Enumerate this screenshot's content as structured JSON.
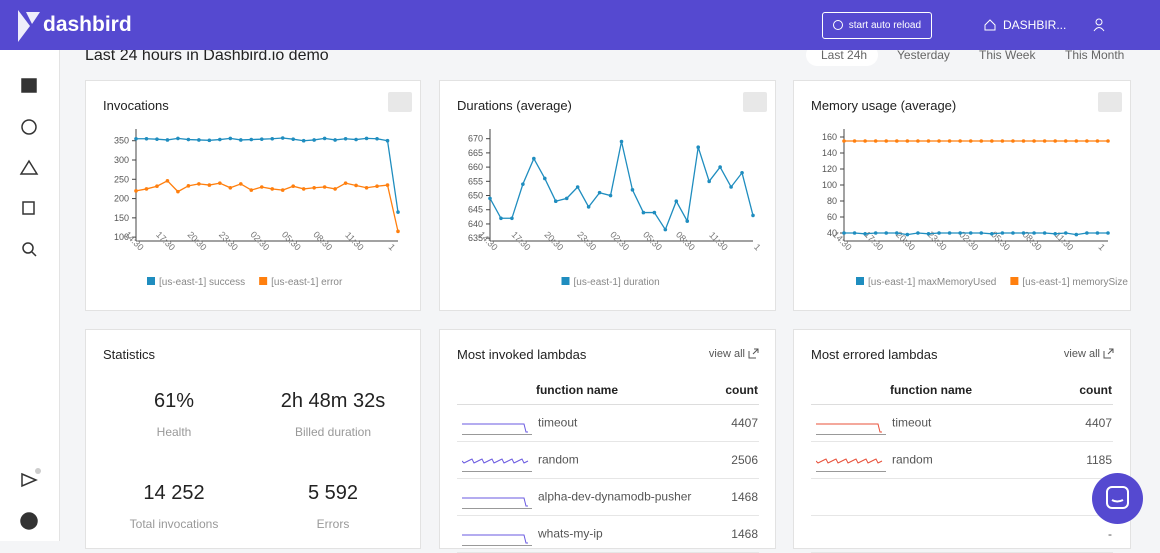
{
  "header": {
    "logo": "dashbird",
    "reload_button": "start auto reload",
    "account": "DASHBIR...",
    "page_title": "Last 24 hours in Dashbird.io demo",
    "tabs": [
      "Last 24h",
      "Yesterday",
      "This Week",
      "This Month"
    ]
  },
  "chart_data": [
    {
      "type": "line",
      "title": "Invocations",
      "categories": [
        "14:30",
        null,
        null,
        "17:30",
        null,
        null,
        "20:30",
        null,
        null,
        "23:30",
        null,
        null,
        "02:30",
        null,
        null,
        "05:30",
        null,
        null,
        "08:30",
        null,
        null,
        "11:30",
        null,
        null,
        "1",
        null
      ],
      "series": [
        {
          "name": "[us-east-1] success",
          "color": "#1f8dbf",
          "values": [
            355,
            355,
            354,
            352,
            356,
            353,
            352,
            351,
            353,
            356,
            352,
            353,
            354,
            355,
            357,
            354,
            350,
            352,
            356,
            352,
            355,
            353,
            356,
            355,
            350,
            165
          ]
        },
        {
          "name": "[us-east-1] error",
          "color": "#ff7f0e",
          "values": [
            220,
            225,
            232,
            246,
            218,
            233,
            238,
            235,
            240,
            228,
            238,
            222,
            230,
            225,
            222,
            232,
            225,
            228,
            230,
            225,
            240,
            234,
            228,
            232,
            235,
            115
          ]
        }
      ],
      "ylim": [
        90,
        370
      ],
      "yticks": [
        100,
        150,
        200,
        250,
        300,
        350
      ]
    },
    {
      "type": "line",
      "title": "Durations (average)",
      "categories": [
        "14:30",
        null,
        null,
        "17:30",
        null,
        null,
        "20:30",
        null,
        null,
        "23:30",
        null,
        null,
        "02:30",
        null,
        null,
        "05:30",
        null,
        null,
        "08:30",
        null,
        null,
        "11:30",
        null,
        null,
        "1"
      ],
      "series": [
        {
          "name": "[us-east-1] duration",
          "color": "#1f8dbf",
          "values": [
            649,
            642,
            642,
            654,
            663,
            656,
            648,
            649,
            653,
            646,
            651,
            650,
            669,
            652,
            644,
            644,
            638,
            648,
            641,
            667,
            655,
            660,
            653,
            658,
            643
          ]
        }
      ],
      "ylim": [
        634,
        672
      ],
      "yticks": [
        635,
        640,
        645,
        650,
        655,
        660,
        665,
        670
      ]
    },
    {
      "type": "line",
      "title": "Memory usage (average)",
      "categories": [
        "14:30",
        null,
        null,
        "17:30",
        null,
        null,
        "20:30",
        null,
        null,
        "23:30",
        null,
        null,
        "02:30",
        null,
        null,
        "05:30",
        null,
        null,
        "08:30",
        null,
        null,
        "11:30",
        null,
        null,
        "1",
        null
      ],
      "series": [
        {
          "name": "[us-east-1] maxMemoryUsed",
          "color": "#1f8dbf",
          "values": [
            40,
            40,
            39,
            40,
            40,
            40,
            38,
            40,
            39,
            40,
            40,
            40,
            40,
            40,
            39,
            40,
            40,
            40,
            40,
            40,
            39,
            40,
            38,
            40,
            40,
            40
          ]
        },
        {
          "name": "[us-east-1] memorySize",
          "color": "#ff7f0e",
          "values": [
            155,
            155,
            155,
            155,
            155,
            155,
            155,
            155,
            155,
            155,
            155,
            155,
            155,
            155,
            155,
            155,
            155,
            155,
            155,
            155,
            155,
            155,
            155,
            155,
            155,
            155
          ]
        }
      ],
      "ylim": [
        30,
        165
      ],
      "yticks": [
        40,
        60,
        80,
        100,
        120,
        140,
        160
      ]
    }
  ],
  "statistics": {
    "title": "Statistics",
    "items": [
      {
        "value": "61%",
        "label": "Health"
      },
      {
        "value": "2h 48m 32s",
        "label": "Billed duration"
      },
      {
        "value": "14 252",
        "label": "Total invocations"
      },
      {
        "value": "5 592",
        "label": "Errors"
      }
    ]
  },
  "invoked": {
    "title": "Most invoked lambdas",
    "link": "view all",
    "columns": [
      "function name",
      "count"
    ],
    "rows": [
      [
        "timeout",
        "4407"
      ],
      [
        "random",
        "2506"
      ],
      [
        "alpha-dev-dynamodb-pusher",
        "1468"
      ],
      [
        "whats-my-ip",
        "1468"
      ]
    ]
  },
  "errored": {
    "title": "Most errored lambdas",
    "link": "view all",
    "columns": [
      "function name",
      "count"
    ],
    "rows": [
      [
        "timeout",
        "4407"
      ],
      [
        "random",
        "1185"
      ],
      [
        "",
        "-"
      ],
      [
        "",
        "-"
      ]
    ]
  }
}
